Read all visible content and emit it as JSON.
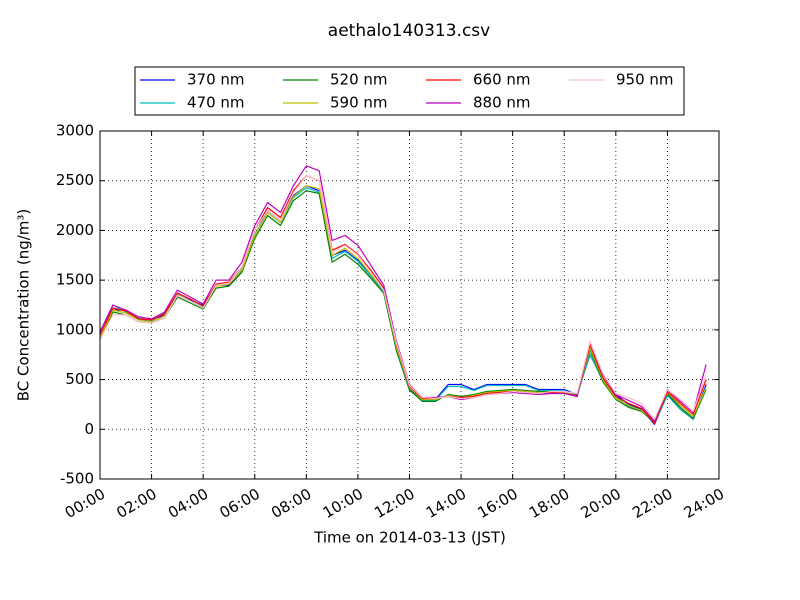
{
  "chart_data": {
    "type": "line",
    "title": "aethalo140313.csv",
    "x_label": "Time on 2014-03-13 (JST)",
    "y_label": "BC Concentration (ng/m³)",
    "x": [
      0,
      0.5,
      1,
      1.5,
      2,
      2.5,
      3,
      3.5,
      4,
      4.5,
      5,
      5.5,
      6,
      6.5,
      7,
      7.5,
      8,
      8.5,
      9,
      9.5,
      10,
      10.5,
      11,
      11.5,
      12,
      12.5,
      13,
      13.5,
      14,
      14.5,
      15,
      15.5,
      16,
      16.5,
      17,
      17.5,
      18,
      18.5,
      19,
      19.5,
      20,
      20.5,
      21,
      21.5,
      22,
      22.5,
      23,
      23.5
    ],
    "series": [
      {
        "name": "370 nm",
        "color": "#0000ff",
        "values": [
          950,
          1200,
          1200,
          1100,
          1100,
          1150,
          1350,
          1300,
          1250,
          1450,
          1450,
          1600,
          1950,
          2200,
          2100,
          2350,
          2450,
          2400,
          1750,
          1800,
          1700,
          1550,
          1400,
          800,
          400,
          300,
          300,
          450,
          450,
          400,
          450,
          450,
          450,
          450,
          400,
          400,
          400,
          350,
          750,
          500,
          350,
          250,
          200,
          50,
          350,
          200,
          100,
          450
        ]
      },
      {
        "name": "470 nm",
        "color": "#00bfbf",
        "values": [
          930,
          1250,
          1180,
          1120,
          1090,
          1170,
          1360,
          1290,
          1230,
          1460,
          1470,
          1620,
          1960,
          2180,
          2080,
          2330,
          2430,
          2380,
          1720,
          1790,
          1690,
          1540,
          1380,
          780,
          390,
          290,
          290,
          430,
          430,
          390,
          440,
          440,
          440,
          440,
          390,
          390,
          390,
          340,
          760,
          480,
          330,
          230,
          190,
          60,
          340,
          200,
          100,
          430
        ]
      },
      {
        "name": "520 nm",
        "color": "#008000",
        "values": [
          900,
          1180,
          1150,
          1080,
          1070,
          1120,
          1330,
          1270,
          1210,
          1420,
          1440,
          1580,
          1920,
          2150,
          2050,
          2300,
          2400,
          2370,
          1680,
          1760,
          1660,
          1520,
          1370,
          790,
          400,
          280,
          280,
          350,
          330,
          350,
          380,
          390,
          400,
          390,
          380,
          380,
          370,
          330,
          800,
          480,
          300,
          220,
          180,
          70,
          360,
          220,
          110,
          400
        ]
      },
      {
        "name": "590 nm",
        "color": "#bfbf00",
        "values": [
          920,
          1200,
          1170,
          1100,
          1080,
          1140,
          1350,
          1290,
          1220,
          1440,
          1460,
          1600,
          1950,
          2180,
          2080,
          2340,
          2450,
          2420,
          1750,
          1820,
          1720,
          1560,
          1400,
          820,
          420,
          300,
          300,
          340,
          320,
          340,
          370,
          380,
          390,
          380,
          370,
          370,
          370,
          330,
          820,
          500,
          310,
          240,
          190,
          80,
          370,
          240,
          130,
          420
        ]
      },
      {
        "name": "660 nm",
        "color": "#ff0000",
        "values": [
          950,
          1220,
          1190,
          1110,
          1100,
          1160,
          1370,
          1310,
          1240,
          1460,
          1480,
          1630,
          2000,
          2230,
          2130,
          2400,
          2550,
          2500,
          1800,
          1860,
          1760,
          1600,
          1420,
          850,
          430,
          310,
          310,
          330,
          320,
          330,
          360,
          370,
          380,
          370,
          360,
          370,
          360,
          340,
          850,
          520,
          330,
          260,
          210,
          60,
          380,
          260,
          150,
          500
        ]
      },
      {
        "name": "880 nm",
        "color": "#bf00bf",
        "values": [
          980,
          1250,
          1200,
          1130,
          1110,
          1180,
          1400,
          1330,
          1260,
          1500,
          1500,
          1680,
          2050,
          2280,
          2180,
          2450,
          2650,
          2600,
          1900,
          1950,
          1850,
          1650,
          1450,
          880,
          450,
          320,
          320,
          330,
          300,
          320,
          350,
          360,
          370,
          360,
          350,
          360,
          360,
          330,
          880,
          550,
          350,
          290,
          230,
          80,
          400,
          280,
          170,
          650
        ]
      },
      {
        "name": "950 nm",
        "color": "#ffc0cb",
        "values": [
          900,
          1150,
          1150,
          1080,
          1070,
          1120,
          1350,
          1290,
          1220,
          1450,
          1470,
          1630,
          2000,
          2200,
          2100,
          2380,
          2550,
          2500,
          1780,
          1850,
          1750,
          1580,
          1400,
          860,
          440,
          320,
          310,
          330,
          310,
          320,
          350,
          360,
          380,
          370,
          360,
          380,
          380,
          360,
          880,
          560,
          360,
          320,
          260,
          100,
          400,
          300,
          180,
          550
        ]
      }
    ],
    "xlim": [
      0,
      24
    ],
    "xticks": [
      {
        "value": 0,
        "label": "00:00"
      },
      {
        "value": 2,
        "label": "02:00"
      },
      {
        "value": 4,
        "label": "04:00"
      },
      {
        "value": 6,
        "label": "06:00"
      },
      {
        "value": 8,
        "label": "08:00"
      },
      {
        "value": 10,
        "label": "10:00"
      },
      {
        "value": 12,
        "label": "12:00"
      },
      {
        "value": 14,
        "label": "14:00"
      },
      {
        "value": 16,
        "label": "16:00"
      },
      {
        "value": 18,
        "label": "18:00"
      },
      {
        "value": 20,
        "label": "20:00"
      },
      {
        "value": 22,
        "label": "22:00"
      },
      {
        "value": 24,
        "label": "24:00"
      }
    ],
    "ylim": [
      -500,
      3000
    ],
    "yticks": [
      -500,
      0,
      500,
      1000,
      1500,
      2000,
      2500,
      3000
    ],
    "grid": true,
    "legend": "top"
  }
}
